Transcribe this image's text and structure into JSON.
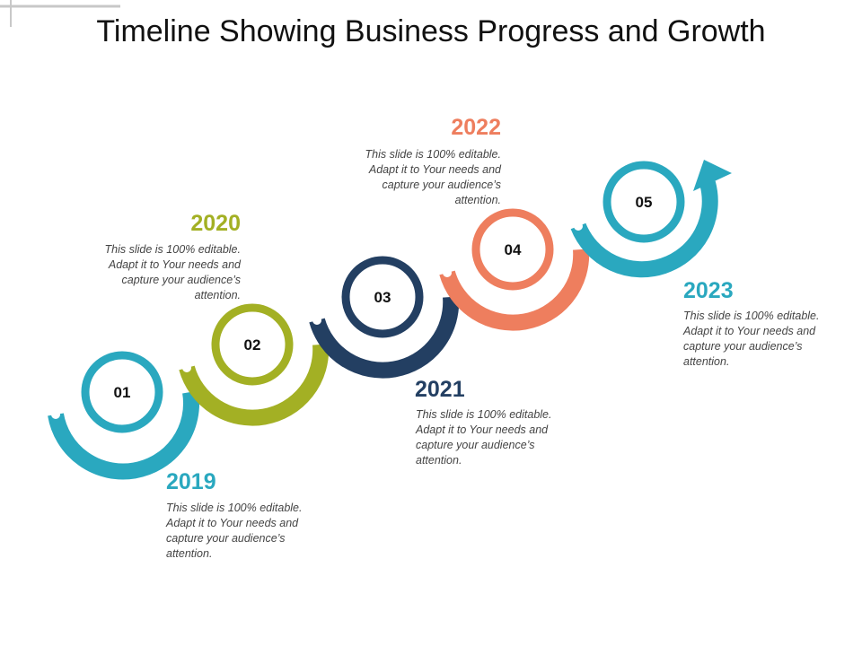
{
  "title": "Timeline Showing Business Progress and Growth",
  "steps": [
    {
      "number": "01",
      "year": "2019",
      "text": "This slide is 100% editable. Adapt it to Your needs and capture your audience’s attention.",
      "color": "#2aa8bf"
    },
    {
      "number": "02",
      "year": "2020",
      "text": "This slide is 100% editable. Adapt it to Your needs and capture your audience’s attention.",
      "color": "#a3b024"
    },
    {
      "number": "03",
      "year": "2021",
      "text": "This slide is 100% editable. Adapt it to Your needs and capture your audience’s attention.",
      "color": "#233f62"
    },
    {
      "number": "04",
      "year": "2022",
      "text": "This slide is 100% editable. Adapt it to Your needs and capture your audience’s attention.",
      "color": "#ee7e5e"
    },
    {
      "number": "05",
      "year": "2023",
      "text": "This slide is 100% editable. Adapt it to Your needs and capture your audience’s attention.",
      "color": "#2aa8bf"
    }
  ]
}
